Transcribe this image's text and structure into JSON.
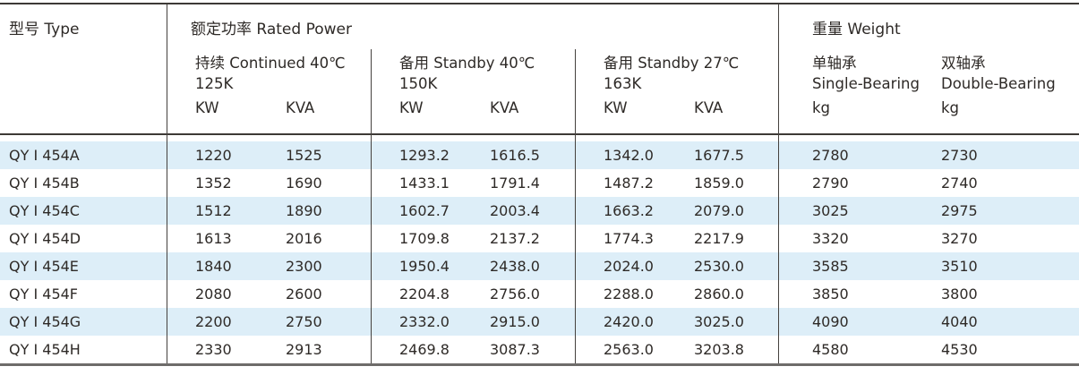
{
  "colors": {
    "stripe_blue": "#ddeef8",
    "rule_dark": "#3d3936",
    "rule_gray": "#6e6c6a",
    "text": "#2e2a27"
  },
  "table": {
    "header": {
      "type_label": "型号 Type",
      "rated_power_label": "额定功率 Rated Power",
      "weight_label": "重量 Weight",
      "power_groups": [
        {
          "condition": "持续 Continued 40℃",
          "k_class": "125K",
          "unit_kw": "KW",
          "unit_kva": "KVA"
        },
        {
          "condition": "备用 Standby 40℃",
          "k_class": "150K",
          "unit_kw": "KW",
          "unit_kva": "KVA"
        },
        {
          "condition": "备用 Standby 27℃",
          "k_class": "163K",
          "unit_kw": "KW",
          "unit_kva": "KVA"
        }
      ],
      "weight_columns": [
        {
          "cn": "单轴承",
          "en": "Single-Bearing",
          "unit": "kg"
        },
        {
          "cn": "双轴承",
          "en": "Double-Bearing",
          "unit": "kg"
        }
      ]
    },
    "rows": [
      {
        "model": "QY Ⅰ 454A",
        "values": [
          "1220",
          "1525",
          "1293.2",
          "1616.5",
          "1342.0",
          "1677.5",
          "2780",
          "2730"
        ]
      },
      {
        "model": "QY Ⅰ 454B",
        "values": [
          "1352",
          "1690",
          "1433.1",
          "1791.4",
          "1487.2",
          "1859.0",
          "2790",
          "2740"
        ]
      },
      {
        "model": "QY Ⅰ 454C",
        "values": [
          "1512",
          "1890",
          "1602.7",
          "2003.4",
          "1663.2",
          "2079.0",
          "3025",
          "2975"
        ]
      },
      {
        "model": "QY Ⅰ 454D",
        "values": [
          "1613",
          "2016",
          "1709.8",
          "2137.2",
          "1774.3",
          "2217.9",
          "3320",
          "3270"
        ]
      },
      {
        "model": "QY Ⅰ 454E",
        "values": [
          "1840",
          "2300",
          "1950.4",
          "2438.0",
          "2024.0",
          "2530.0",
          "3585",
          "3510"
        ]
      },
      {
        "model": "QY Ⅰ 454F",
        "values": [
          "2080",
          "2600",
          "2204.8",
          "2756.0",
          "2288.0",
          "2860.0",
          "3850",
          "3800"
        ]
      },
      {
        "model": "QY Ⅰ 454G",
        "values": [
          "2200",
          "2750",
          "2332.0",
          "2915.0",
          "2420.0",
          "3025.0",
          "4090",
          "4040"
        ]
      },
      {
        "model": "QY Ⅰ 454H",
        "values": [
          "2330",
          "2913",
          "2469.8",
          "3087.3",
          "2563.0",
          "3203.8",
          "4580",
          "4530"
        ]
      }
    ]
  }
}
